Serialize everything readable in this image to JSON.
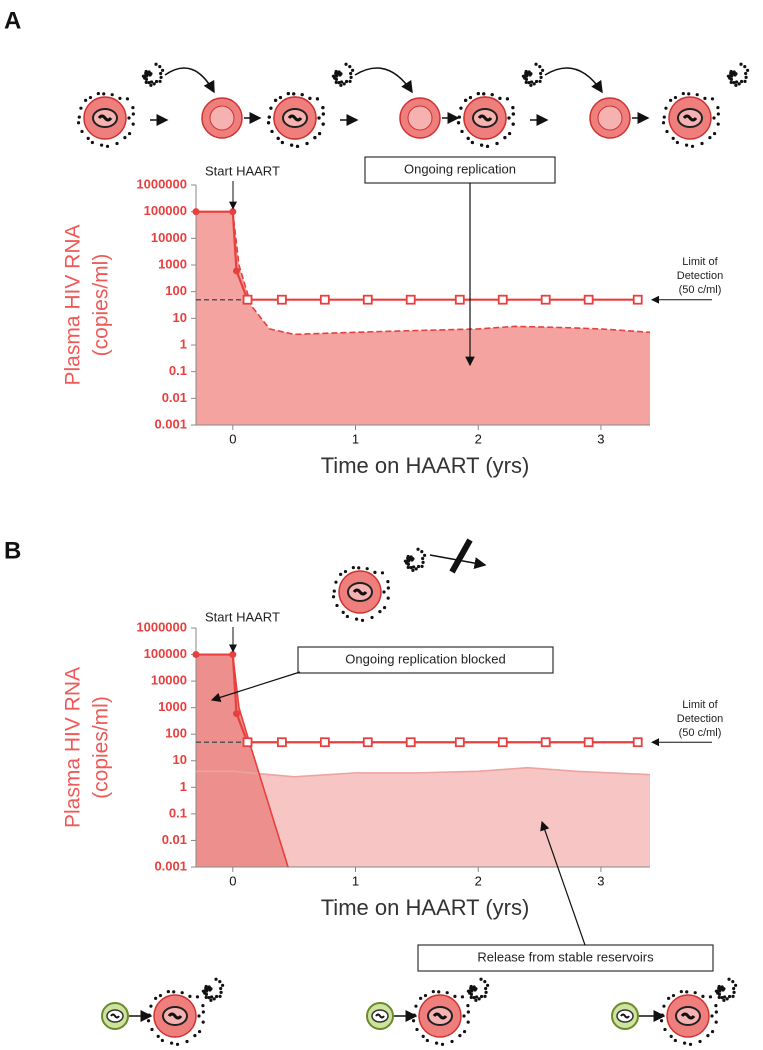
{
  "chart_data": [
    {
      "type": "line",
      "panel": "A",
      "log_y": true,
      "ylabel": [
        "Plasma HIV RNA",
        "(copies/ml)"
      ],
      "xlabel": "Time on HAART (yrs)",
      "xlim": [
        -0.3,
        3.4
      ],
      "xticks": [
        0,
        1,
        2,
        3
      ],
      "ylim": [
        0.001,
        1000000
      ],
      "yticks": [
        1000000,
        100000,
        10000,
        1000,
        100,
        10,
        1,
        0.1,
        0.01,
        0.001
      ],
      "limit_of_detection": 50,
      "annotations": {
        "start": "Start HAART",
        "boxes": [
          "Ongoing replication"
        ],
        "limit": [
          "Limit of",
          "Detection",
          "(50 c/ml)"
        ]
      },
      "series": [
        {
          "kind": "area",
          "color": "#e8403f",
          "fill": "#f4a3a0",
          "line_style": "dashed",
          "x": [
            -0.3,
            0,
            0.05,
            0.15,
            0.3,
            0.5,
            1.0,
            1.5,
            2.0,
            2.3,
            2.7,
            3.0,
            3.4
          ],
          "values": [
            100000,
            100000,
            1000,
            30,
            4,
            2.5,
            3,
            3.5,
            4,
            5,
            4.5,
            4,
            3
          ]
        },
        {
          "kind": "measured",
          "color": "#e8403f",
          "line_style": "solid",
          "x": [
            -0.3,
            0,
            0.03,
            0.12,
            0.4,
            0.75,
            1.1,
            1.45,
            1.85,
            2.2,
            2.55,
            2.9,
            3.3
          ],
          "values": [
            100000,
            100000,
            600,
            50,
            50,
            50,
            50,
            50,
            50,
            50,
            50,
            50,
            50
          ],
          "markers": [
            "dot",
            "dot",
            "dot",
            "open-square",
            "open-square",
            "open-square",
            "open-square",
            "open-square",
            "open-square",
            "open-square",
            "open-square",
            "open-square",
            "open-square"
          ]
        }
      ]
    },
    {
      "type": "line",
      "panel": "B",
      "log_y": true,
      "ylabel": [
        "Plasma HIV RNA",
        "(copies/ml)"
      ],
      "xlabel": "Time on HAART (yrs)",
      "xlim": [
        -0.3,
        3.4
      ],
      "xticks": [
        0,
        1,
        2,
        3
      ],
      "ylim": [
        0.001,
        1000000
      ],
      "yticks": [
        1000000,
        100000,
        10000,
        1000,
        100,
        10,
        1,
        0.1,
        0.01,
        0.001
      ],
      "limit_of_detection": 50,
      "annotations": {
        "start": "Start HAART",
        "boxes": [
          "Ongoing replication blocked",
          "Release from stable reservoirs"
        ],
        "limit": [
          "Limit of",
          "Detection",
          "(50 c/ml)"
        ]
      },
      "series": [
        {
          "kind": "area",
          "color": "#eda3a1",
          "fill": "#f7c6c4",
          "line_style": "solid",
          "x": [
            -0.3,
            0,
            0.5,
            1.0,
            1.5,
            2.0,
            2.4,
            2.8,
            3.4
          ],
          "values": [
            4,
            4,
            2.5,
            3.5,
            3.5,
            4,
            5.5,
            4,
            3
          ]
        },
        {
          "kind": "area",
          "color": "#e8403f",
          "fill": "#ec8f8d",
          "line_style": "solid",
          "x": [
            -0.3,
            0,
            0.05,
            0.15,
            0.45
          ],
          "values": [
            100000,
            100000,
            1000,
            30,
            0.001
          ]
        },
        {
          "kind": "measured",
          "color": "#e8403f",
          "line_style": "solid",
          "x": [
            -0.3,
            0,
            0.03,
            0.12,
            0.4,
            0.75,
            1.1,
            1.45,
            1.85,
            2.2,
            2.55,
            2.9,
            3.3
          ],
          "values": [
            100000,
            100000,
            600,
            50,
            50,
            50,
            50,
            50,
            50,
            50,
            50,
            50,
            50
          ],
          "markers": [
            "dot",
            "dot",
            "dot",
            "open-square",
            "open-square",
            "open-square",
            "open-square",
            "open-square",
            "open-square",
            "open-square",
            "open-square",
            "open-square",
            "open-square"
          ]
        }
      ]
    }
  ]
}
